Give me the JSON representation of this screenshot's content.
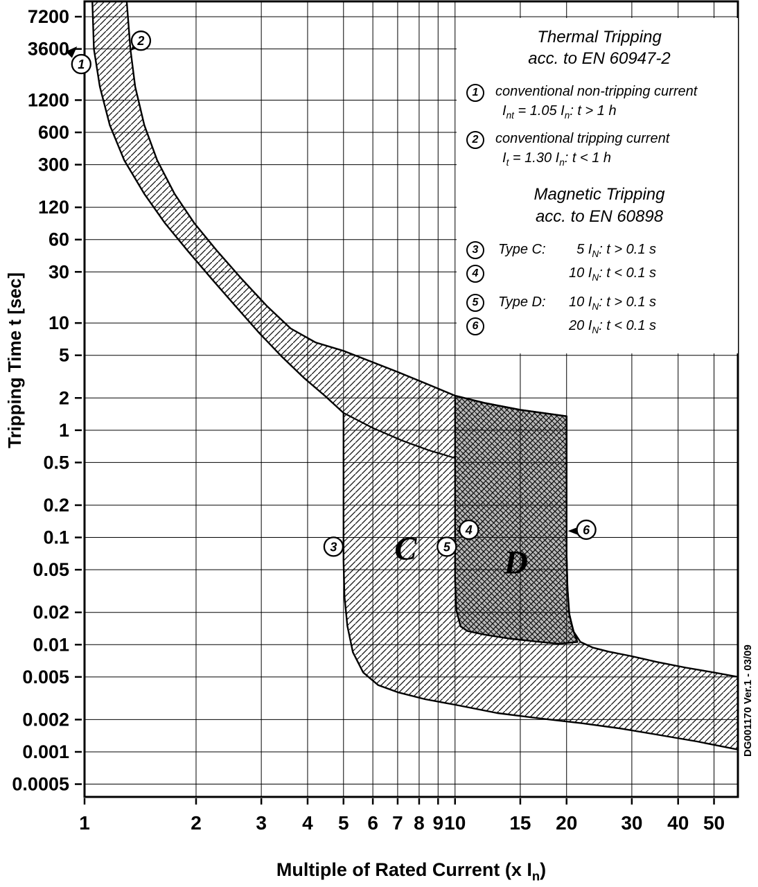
{
  "y_axis": {
    "label": "Tripping Time t [sec]",
    "tick_labels": [
      "7200",
      "3600",
      "1200",
      "600",
      "300",
      "120",
      "60",
      "30",
      "10",
      "5",
      "2",
      "1",
      "0.5",
      "0.2",
      "0.1",
      "0.05",
      "0.02",
      "0.01",
      "0.005",
      "0.002",
      "0.001",
      "0.0005"
    ]
  },
  "x_axis": {
    "label_parts": [
      [
        "Multiple of Rated Current (x I",
        "text"
      ],
      [
        "n",
        "sub"
      ],
      [
        ")",
        "text"
      ]
    ],
    "tick_labels": [
      "1",
      "2",
      "3",
      "4",
      "5",
      "6",
      "7",
      "8",
      "9",
      "10",
      "15",
      "20",
      "30",
      "40",
      "50"
    ]
  },
  "watermark": "DG001170 Ver.1 - 03/09",
  "legend": {
    "sections": [
      {
        "title_lines": [
          "Thermal Tripping",
          "acc. to EN 60947-2"
        ],
        "layout": "desc",
        "items": [
          {
            "marker": "1",
            "desc": "conventional non-tripping current",
            "formula": [
              [
                "I",
                "text"
              ],
              [
                "nt",
                "sub"
              ],
              [
                " = 1.05 I",
                "text"
              ],
              [
                "n",
                "sub"
              ],
              [
                ":  t > 1 h",
                "text"
              ]
            ]
          },
          {
            "marker": "2",
            "desc": "conventional tripping current",
            "formula": [
              [
                "I",
                "text"
              ],
              [
                "t",
                "sub"
              ],
              [
                " = 1.30 I",
                "text"
              ],
              [
                "n",
                "sub"
              ],
              [
                ":  t < 1 h",
                "text"
              ]
            ]
          }
        ]
      },
      {
        "title_lines": [
          "Magnetic Tripping",
          "acc. to EN 60898"
        ],
        "layout": "type",
        "items": [
          {
            "marker": "3",
            "type_label": "Type C:",
            "formula": [
              [
                "  5 I",
                "text"
              ],
              [
                "N",
                "sub"
              ],
              [
                ": t > 0.1 s",
                "text"
              ]
            ]
          },
          {
            "marker": "4",
            "type_label": "",
            "formula": [
              [
                "10 I",
                "text"
              ],
              [
                "N",
                "sub"
              ],
              [
                ": t < 0.1 s",
                "text"
              ]
            ]
          },
          {
            "marker": "5",
            "type_label": "Type D:",
            "gap_before": true,
            "formula": [
              [
                "10 I",
                "text"
              ],
              [
                "N",
                "sub"
              ],
              [
                ": t > 0.1 s",
                "text"
              ]
            ]
          },
          {
            "marker": "6",
            "type_label": "",
            "formula": [
              [
                "20 I",
                "text"
              ],
              [
                "N",
                "sub"
              ],
              [
                ": t < 0.1 s",
                "text"
              ]
            ]
          }
        ]
      }
    ]
  },
  "chart_data": {
    "type": "area",
    "x_scale": "log",
    "y_scale": "log",
    "x_range": [
      1,
      58
    ],
    "y_range": [
      0.00038,
      10000
    ],
    "grid": true,
    "x_ticks": [
      1,
      2,
      3,
      4,
      5,
      6,
      7,
      8,
      9,
      10,
      15,
      20,
      30,
      40,
      50
    ],
    "y_ticks": [
      7200,
      3600,
      1200,
      600,
      300,
      120,
      60,
      30,
      10,
      5,
      2,
      1,
      0.5,
      0.2,
      0.1,
      0.05,
      0.02,
      0.01,
      0.005,
      0.002,
      0.001,
      0.0005
    ],
    "curves": {
      "thermal_lower": [
        [
          1.05,
          10000
        ],
        [
          1.06,
          3600
        ],
        [
          1.1,
          1600
        ],
        [
          1.17,
          700
        ],
        [
          1.28,
          330
        ],
        [
          1.45,
          160
        ],
        [
          1.65,
          85
        ],
        [
          1.9,
          47
        ],
        [
          2.2,
          26
        ],
        [
          2.55,
          14.5
        ],
        [
          2.95,
          8.2
        ],
        [
          3.4,
          4.9
        ],
        [
          3.9,
          3.1
        ],
        [
          4.45,
          2.1
        ],
        [
          5,
          1.45
        ]
      ],
      "thermal_upper": [
        [
          1.3,
          10000
        ],
        [
          1.33,
          3600
        ],
        [
          1.37,
          1600
        ],
        [
          1.45,
          700
        ],
        [
          1.57,
          330
        ],
        [
          1.75,
          160
        ],
        [
          1.98,
          85
        ],
        [
          2.28,
          47
        ],
        [
          2.65,
          26
        ],
        [
          3.1,
          14.5
        ],
        [
          3.6,
          8.9
        ],
        [
          4.2,
          6.6
        ],
        [
          5,
          5.5
        ],
        [
          5.9,
          4.4
        ],
        [
          7,
          3.5
        ],
        [
          8.4,
          2.7
        ],
        [
          10,
          2.1
        ],
        [
          12,
          1.8
        ],
        [
          15,
          1.55
        ],
        [
          20,
          1.35
        ]
      ],
      "thermal_lower_ext": [
        [
          5,
          1.45
        ],
        [
          6,
          1.05
        ],
        [
          7.2,
          0.8
        ],
        [
          8.5,
          0.65
        ],
        [
          10,
          0.55
        ]
      ],
      "c_lower": [
        [
          5,
          1.45
        ],
        [
          5,
          0.06
        ],
        [
          5.03,
          0.028
        ],
        [
          5.12,
          0.015
        ],
        [
          5.3,
          0.0085
        ],
        [
          5.65,
          0.0055
        ],
        [
          6.2,
          0.0042
        ],
        [
          7,
          0.0036
        ],
        [
          8.3,
          0.0031
        ],
        [
          10,
          0.00275
        ],
        [
          13,
          0.0023
        ],
        [
          17,
          0.00205
        ],
        [
          22,
          0.00185
        ],
        [
          28,
          0.00165
        ],
        [
          35,
          0.00145
        ],
        [
          45,
          0.00125
        ],
        [
          58,
          0.00105
        ]
      ],
      "d_upper": [
        [
          20,
          1.35
        ],
        [
          20,
          0.07
        ],
        [
          20.12,
          0.033
        ],
        [
          20.35,
          0.019
        ],
        [
          20.9,
          0.0132
        ],
        [
          21.8,
          0.0106
        ],
        [
          23.5,
          0.0094
        ],
        [
          26,
          0.0086
        ],
        [
          30,
          0.0078
        ],
        [
          35,
          0.0069
        ],
        [
          42,
          0.0061
        ],
        [
          50,
          0.0055
        ],
        [
          58,
          0.005
        ]
      ],
      "d_region": [
        [
          10,
          2.1
        ],
        [
          12,
          1.8
        ],
        [
          15,
          1.55
        ],
        [
          20,
          1.35
        ],
        [
          20,
          0.07
        ],
        [
          20.1,
          0.035
        ],
        [
          20.3,
          0.02
        ],
        [
          20.8,
          0.0138
        ],
        [
          21.4,
          0.0106
        ],
        [
          19,
          0.0102
        ],
        [
          16.5,
          0.0107
        ],
        [
          14,
          0.0114
        ],
        [
          12,
          0.0124
        ],
        [
          10.8,
          0.0134
        ],
        [
          10.35,
          0.0148
        ],
        [
          10.08,
          0.021
        ],
        [
          10,
          0.04
        ]
      ]
    },
    "markers": [
      {
        "label": "1",
        "x": 0.98,
        "t": 2600
      },
      {
        "label": "2",
        "x": 1.42,
        "t": 4300
      },
      {
        "label": "3",
        "x": 4.7,
        "t": 0.082
      },
      {
        "label": "4",
        "x": 10.9,
        "t": 0.118
      },
      {
        "label": "5",
        "x": 9.5,
        "t": 0.082
      },
      {
        "label": "6",
        "x": 22.6,
        "t": 0.118
      }
    ],
    "pointers": [
      {
        "x": 0.955,
        "t": 3800,
        "angle": -45
      },
      {
        "x": 1.33,
        "t": 3450,
        "angle": 135
      },
      {
        "x": 10.08,
        "t": 0.115,
        "angle": 180
      },
      {
        "x": 20.15,
        "t": 0.115,
        "angle": 180
      }
    ],
    "region_labels": [
      {
        "text": "C",
        "x": 7.35,
        "t": 0.062
      },
      {
        "text": "D",
        "x": 14.6,
        "t": 0.046
      }
    ],
    "annotations": {
      "thermal_non_tripping_multiple": 1.05,
      "thermal_tripping_multiple": 1.3,
      "type_c_magnetic_range": [
        5,
        10
      ],
      "type_d_magnetic_range": [
        10,
        20
      ]
    }
  }
}
